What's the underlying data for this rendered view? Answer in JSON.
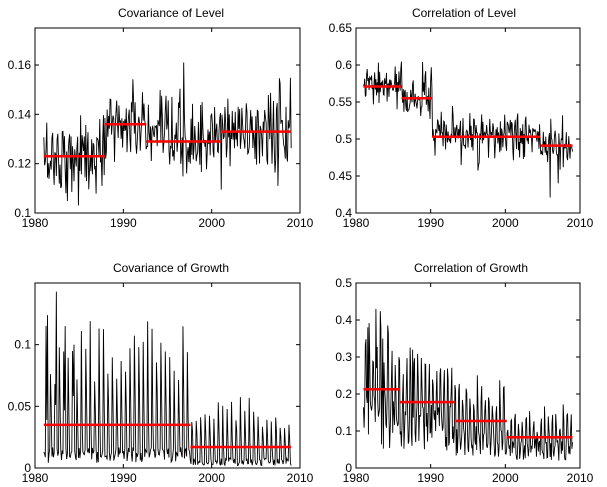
{
  "colors": {
    "series": "#000000",
    "regime_mean": "#ff0000",
    "axes": "#000000",
    "background": "#ffffff"
  },
  "chart_data": [
    {
      "type": "line",
      "title": "Covariance of Level",
      "xlabel": "",
      "ylabel": "",
      "xlim": [
        1980,
        2010
      ],
      "ylim": [
        0.1,
        0.175
      ],
      "xticks": [
        1980,
        1990,
        2000,
        2010
      ],
      "yticks": [
        0.1,
        0.12,
        0.14,
        0.16
      ],
      "xticklabels": [
        "1980",
        "1990",
        "2000",
        "2010"
      ],
      "yticklabels": [
        "0.1",
        "0.12",
        "0.14",
        "0.16"
      ],
      "grid": false,
      "series": [
        {
          "kind": "monthly",
          "x_start": 1981,
          "x_end": 2009,
          "regime_means": [
            {
              "from": 1981,
              "to": 1987.9,
              "value": 0.123
            },
            {
              "from": 1987.9,
              "to": 1992.6,
              "value": 0.136
            },
            {
              "from": 1992.6,
              "to": 2001.1,
              "value": 0.129
            },
            {
              "from": 2001.1,
              "to": 2009,
              "value": 0.133
            }
          ],
          "noise_sd": 0.008,
          "spikes": [
            {
              "x": 1996.8,
              "value": 0.161
            },
            {
              "x": 1988.6,
              "value": 0.146
            },
            {
              "x": 1987.6,
              "value": 0.111
            },
            {
              "x": 1983.5,
              "value": 0.108
            }
          ]
        },
        {
          "kind": "step",
          "segments": [
            {
              "from": 1981,
              "to": 1987.9,
              "value": 0.123
            },
            {
              "from": 1987.9,
              "to": 1992.6,
              "value": 0.136
            },
            {
              "from": 1992.6,
              "to": 2001.1,
              "value": 0.129
            },
            {
              "from": 2001.1,
              "to": 2009,
              "value": 0.133
            }
          ]
        }
      ]
    },
    {
      "type": "line",
      "title": "Correlation of Level",
      "xlabel": "",
      "ylabel": "",
      "xlim": [
        1980,
        2010
      ],
      "ylim": [
        0.4,
        0.65
      ],
      "xticks": [
        1980,
        1990,
        2000,
        2010
      ],
      "yticks": [
        0.4,
        0.45,
        0.5,
        0.55,
        0.6,
        0.65
      ],
      "xticklabels": [
        "1980",
        "1990",
        "2000",
        "2010"
      ],
      "yticklabels": [
        "0.4",
        "0.45",
        "0.5",
        "0.55",
        "0.6",
        "0.65"
      ],
      "grid": false,
      "series": [
        {
          "kind": "monthly",
          "x_start": 1981,
          "x_end": 2009,
          "regime_means": [
            {
              "from": 1981,
              "to": 1986.1,
              "value": 0.571
            },
            {
              "from": 1986.1,
              "to": 1990.2,
              "value": 0.555
            },
            {
              "from": 1990.2,
              "to": 2004.7,
              "value": 0.503
            },
            {
              "from": 2004.7,
              "to": 2009,
              "value": 0.491
            }
          ],
          "noise_sd": 0.014,
          "spikes": [
            {
              "x": 1988.9,
              "value": 0.604
            },
            {
              "x": 1990.1,
              "value": 0.597
            },
            {
              "x": 2006.0,
              "value": 0.421
            },
            {
              "x": 2007.1,
              "value": 0.44
            }
          ]
        },
        {
          "kind": "step",
          "segments": [
            {
              "from": 1981,
              "to": 1986.1,
              "value": 0.571
            },
            {
              "from": 1986.1,
              "to": 1990.2,
              "value": 0.555
            },
            {
              "from": 1990.2,
              "to": 2004.7,
              "value": 0.503
            },
            {
              "from": 2004.7,
              "to": 2009,
              "value": 0.491
            }
          ]
        }
      ]
    },
    {
      "type": "line",
      "title": "Covariance of Growth",
      "xlabel": "",
      "ylabel": "",
      "xlim": [
        1980,
        2010
      ],
      "ylim": [
        0,
        0.15
      ],
      "xticks": [
        1980,
        1990,
        2000,
        2010
      ],
      "yticks": [
        0,
        0.05,
        0.1
      ],
      "xticklabels": [
        "1980",
        "1990",
        "2000",
        "2010"
      ],
      "yticklabels": [
        "0",
        "0.05",
        "0.1"
      ],
      "grid": false,
      "series": [
        {
          "kind": "seasonal",
          "x_start": 1981,
          "x_end": 2009,
          "regime_means": [
            {
              "from": 1981,
              "to": 1997.6,
              "value": 0.035
            },
            {
              "from": 1997.6,
              "to": 2009,
              "value": 0.017
            }
          ],
          "base_fraction": 0.3,
          "peak_scale": 2.7,
          "spikes": [
            {
              "x": 1981.4,
              "value": 0.124
            },
            {
              "x": 1982.4,
              "value": 0.143
            },
            {
              "x": 1983.4,
              "value": 0.115
            },
            {
              "x": 1984.4,
              "value": 0.1
            }
          ]
        },
        {
          "kind": "step",
          "segments": [
            {
              "from": 1981,
              "to": 1997.6,
              "value": 0.035
            },
            {
              "from": 1997.6,
              "to": 2009,
              "value": 0.017
            }
          ]
        }
      ]
    },
    {
      "type": "line",
      "title": "Correlation of Growth",
      "xlabel": "",
      "ylabel": "",
      "xlim": [
        1980,
        2010
      ],
      "ylim": [
        0,
        0.5
      ],
      "xticks": [
        1980,
        1990,
        2000,
        2010
      ],
      "yticks": [
        0,
        0.1,
        0.2,
        0.3,
        0.4,
        0.5
      ],
      "xticklabels": [
        "1980",
        "1990",
        "2000",
        "2010"
      ],
      "yticklabels": [
        "0",
        "0.1",
        "0.2",
        "0.3",
        "0.4",
        "0.5"
      ],
      "grid": false,
      "series": [
        {
          "kind": "seasonal",
          "x_start": 1981,
          "x_end": 2009,
          "regime_means": [
            {
              "from": 1981,
              "to": 1985.9,
              "value": 0.213
            },
            {
              "from": 1985.9,
              "to": 1993.3,
              "value": 0.178
            },
            {
              "from": 1993.3,
              "to": 2000.2,
              "value": 0.127
            },
            {
              "from": 2000.2,
              "to": 2009,
              "value": 0.083
            }
          ],
          "base_fraction": 0.6,
          "peak_scale": 1.6,
          "spikes": [
            {
              "x": 1981.6,
              "value": 0.38
            },
            {
              "x": 1982.7,
              "value": 0.43
            },
            {
              "x": 1983.6,
              "value": 0.35
            },
            {
              "x": 1987.6,
              "value": 0.32
            }
          ]
        },
        {
          "kind": "step",
          "segments": [
            {
              "from": 1981,
              "to": 1985.9,
              "value": 0.213
            },
            {
              "from": 1985.9,
              "to": 1993.3,
              "value": 0.178
            },
            {
              "from": 1993.3,
              "to": 2000.2,
              "value": 0.127
            },
            {
              "from": 2000.2,
              "to": 2009,
              "value": 0.083
            }
          ]
        }
      ]
    }
  ]
}
